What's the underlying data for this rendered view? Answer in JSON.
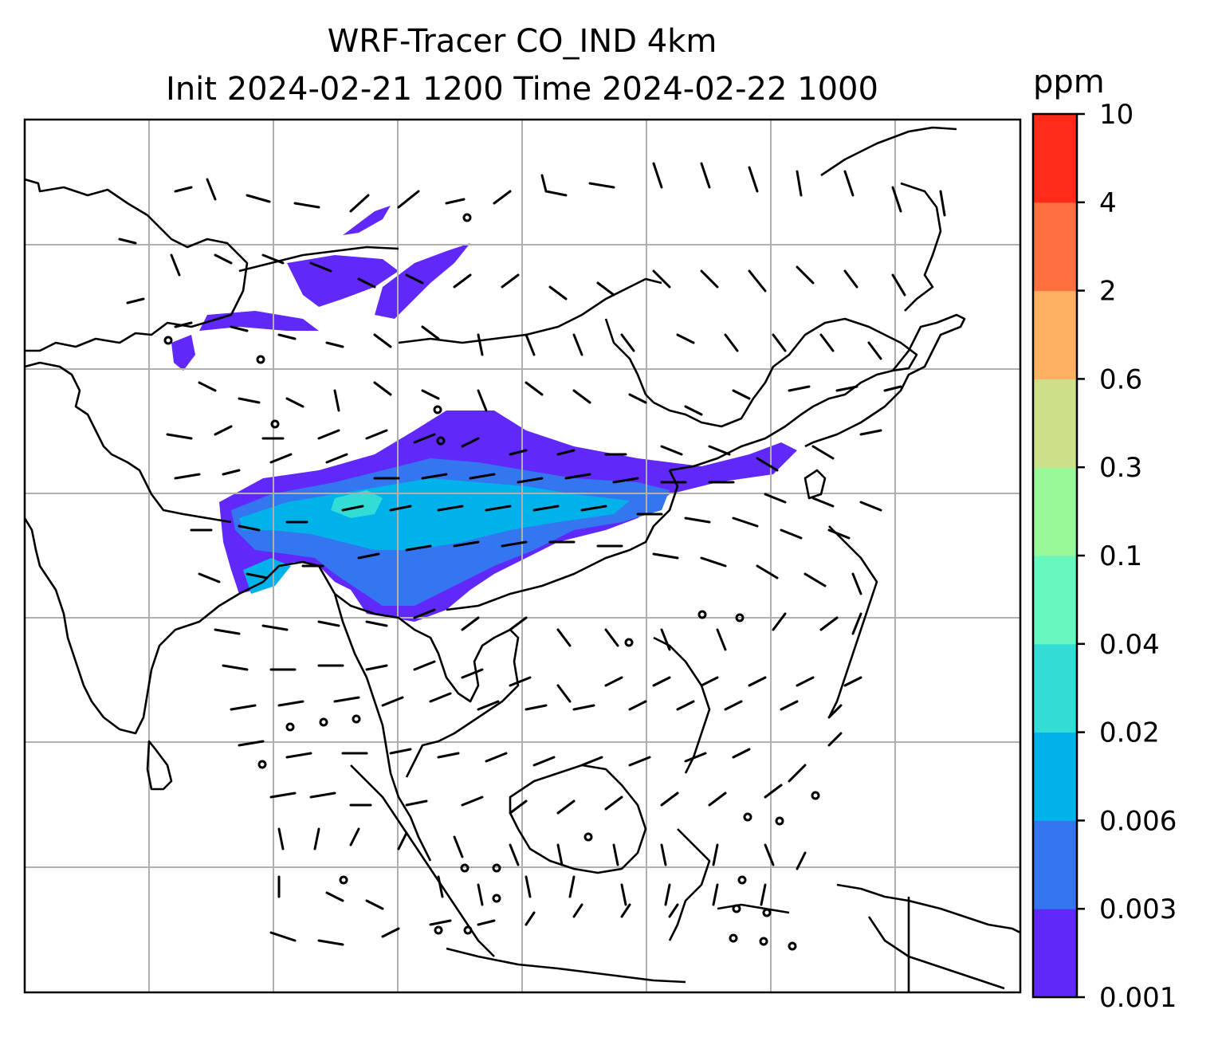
{
  "title_line1": "WRF-Tracer CO_IND 4km",
  "title_line2": "Init 2024-02-21 1200 Time 2024-02-22 1000",
  "colorbar": {
    "units": "ppm",
    "ticks": [
      "0.001",
      "0.003",
      "0.006",
      "0.02",
      "0.04",
      "0.1",
      "0.3",
      "0.6",
      "2",
      "4",
      "10"
    ],
    "colors": [
      "#6128fa",
      "#3376f0",
      "#00b2ea",
      "#33ddd6",
      "#66f8be",
      "#99f99a",
      "#cce089",
      "#ffb062",
      "#ff7040",
      "#ff2a1a"
    ]
  },
  "map": {
    "coastline_color": "#000000",
    "grid_color": "#b0b0b0",
    "plume_levels_shown": [
      "0.001",
      "0.003",
      "0.006",
      "0.02",
      "0.04"
    ]
  }
}
